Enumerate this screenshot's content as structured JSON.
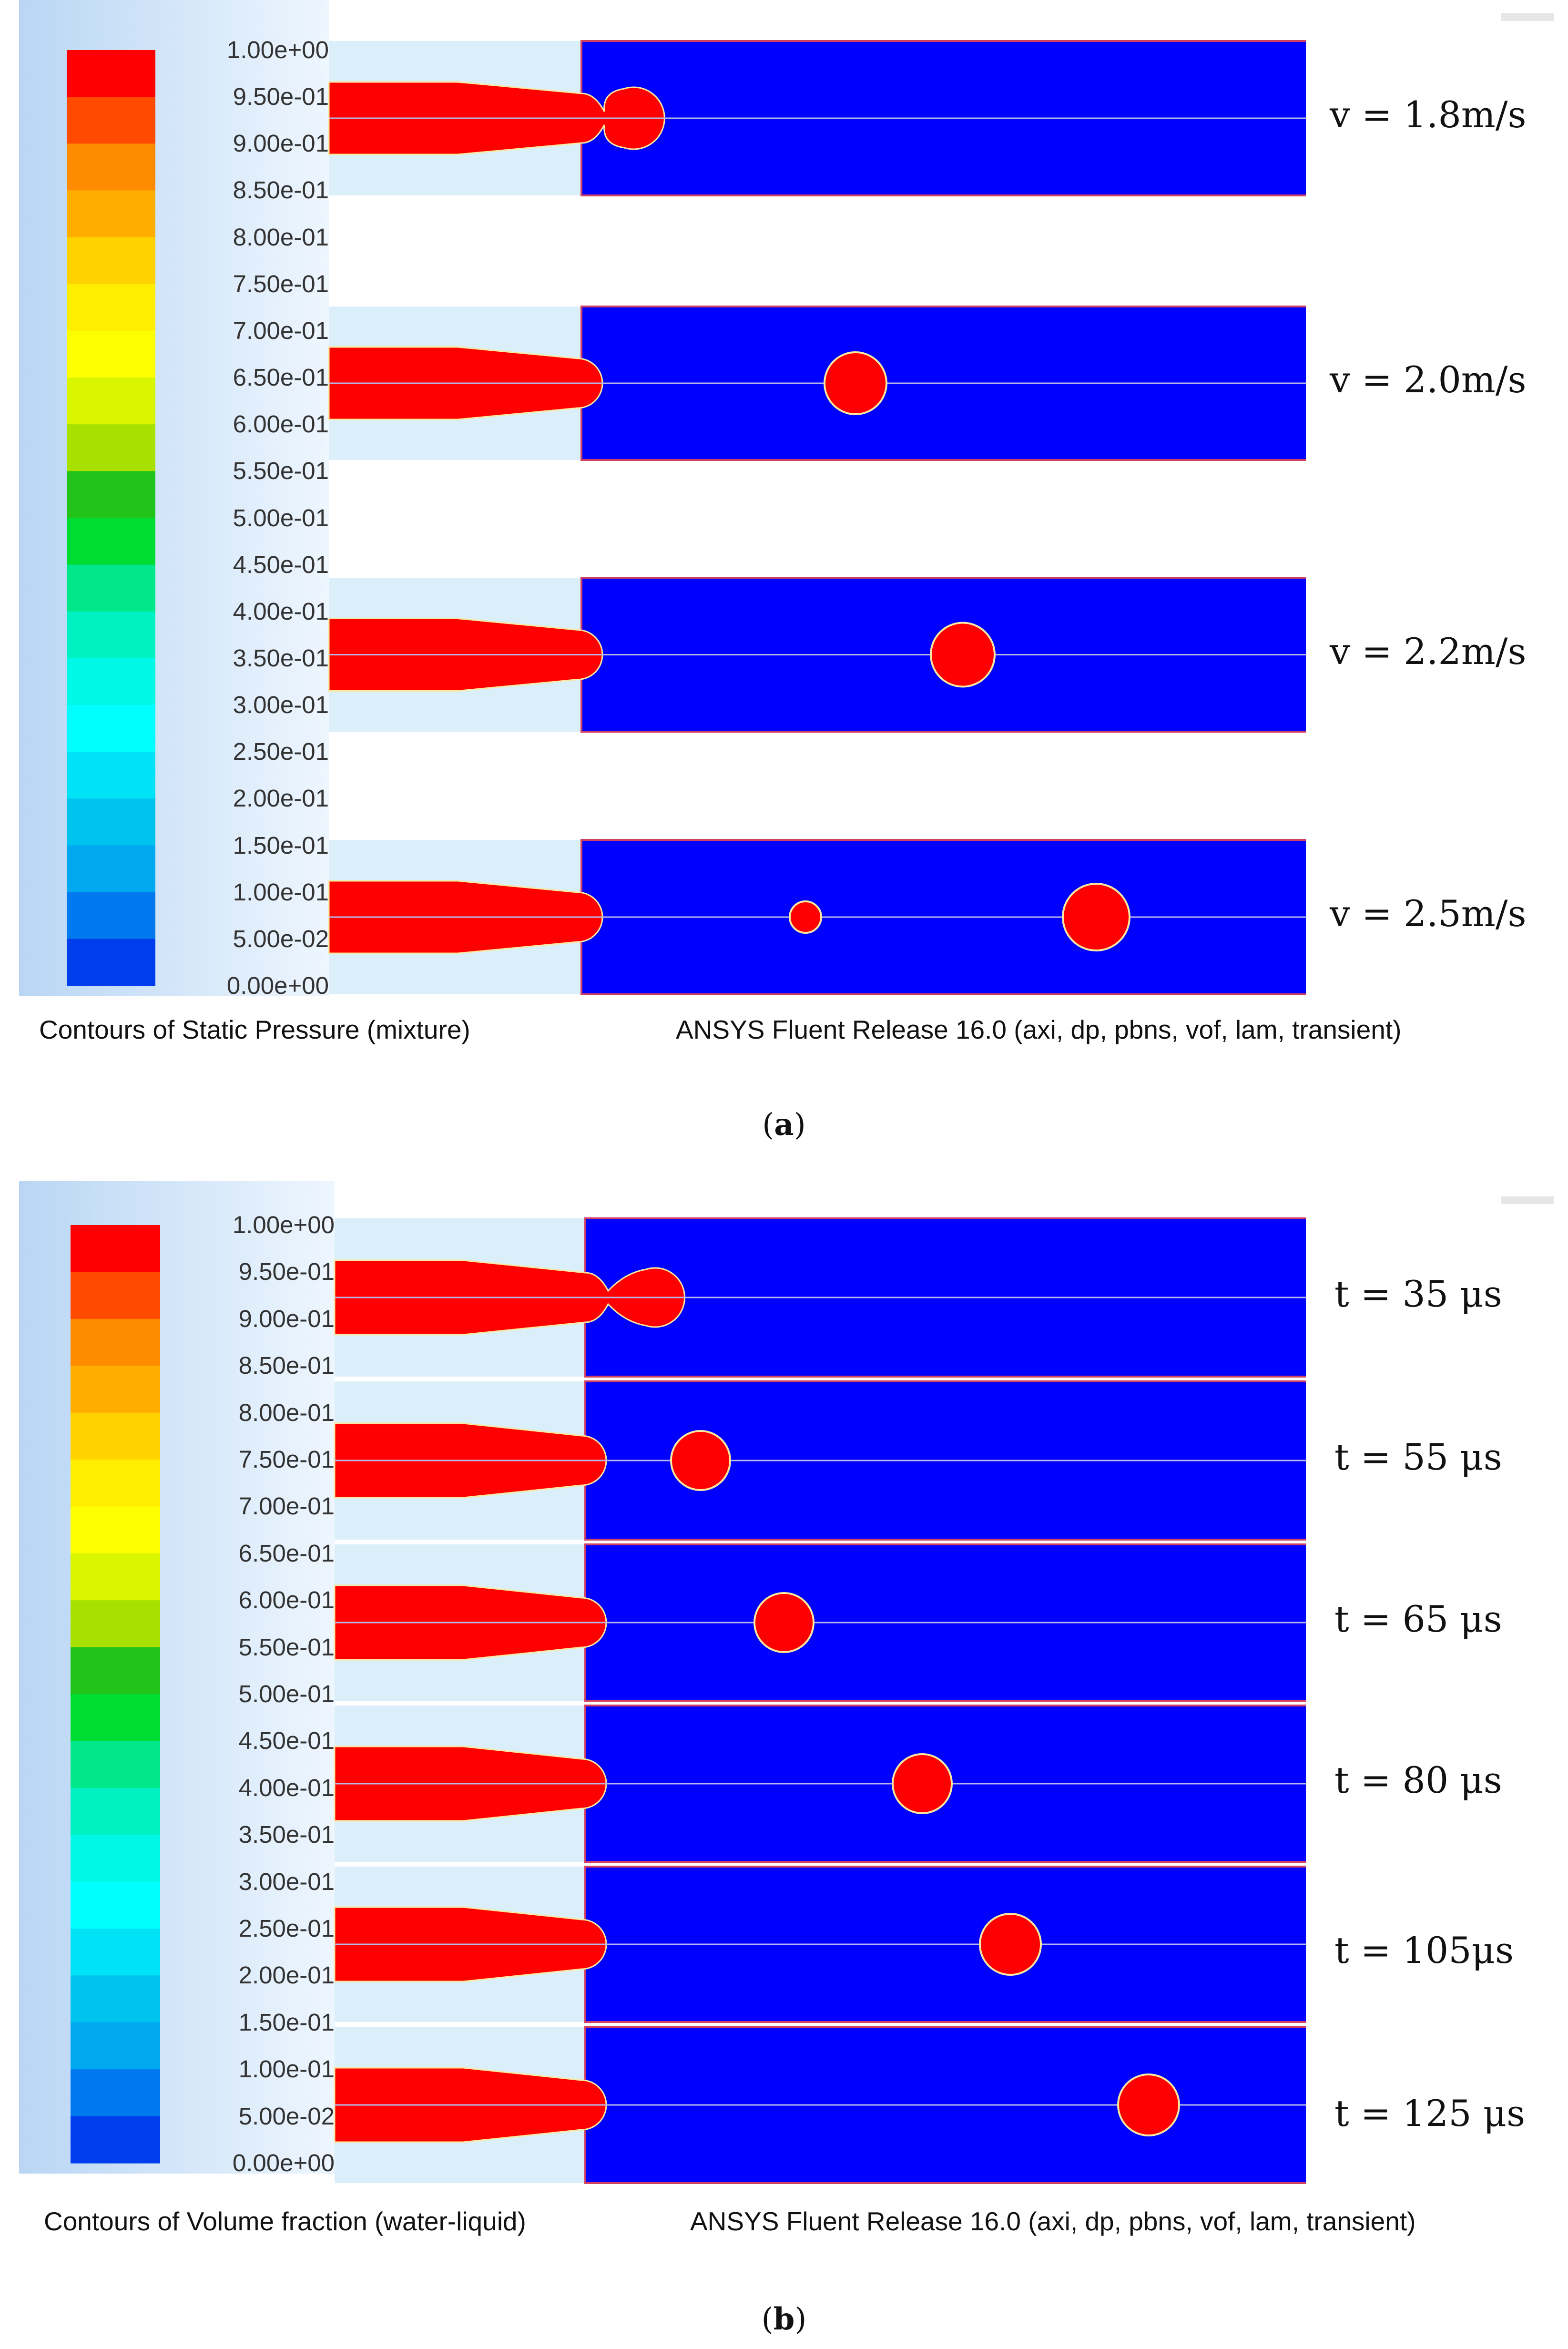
{
  "colorbar": {
    "labels": [
      "1.00e+00",
      "9.50e-01",
      "9.00e-01",
      "8.50e-01",
      "8.00e-01",
      "7.50e-01",
      "7.00e-01",
      "6.50e-01",
      "6.00e-01",
      "5.50e-01",
      "5.00e-01",
      "4.50e-01",
      "4.00e-01",
      "3.50e-01",
      "3.00e-01",
      "2.50e-01",
      "2.00e-01",
      "1.50e-01",
      "1.00e-01",
      "5.00e-02",
      "0.00e+00"
    ],
    "colors_top_to_bottom": [
      "#ff0000",
      "#ff4a00",
      "#ff8c00",
      "#ffae00",
      "#ffd200",
      "#ffee00",
      "#fdff00",
      "#daf500",
      "#a8e000",
      "#22c41c",
      "#00dd32",
      "#00e88a",
      "#00f2c2",
      "#00f8e6",
      "#00ffff",
      "#00e2f6",
      "#00c2ee",
      "#00a8f0",
      "#0078ee",
      "#003dec"
    ]
  },
  "colors": {
    "liquid": "#ff0000",
    "gas": "#0000ff",
    "nozzle_background": "#dbeffb",
    "interface": "#f8e8a0",
    "axis_line": "#b8b8e8"
  },
  "panel_a": {
    "sublabel_letter": "a",
    "caption_left": "Contours of Static Pressure (mixture)",
    "caption_right": "ANSYS Fluent Release 16.0 (axi, dp, pbns, vof, lam, transient)",
    "rows": [
      {
        "label": "v = 1.8m/s",
        "state": "necking"
      },
      {
        "label": "v = 2.0m/s",
        "state": "detached",
        "droplets": 1
      },
      {
        "label": "v = 2.2m/s",
        "state": "detached",
        "droplets": 1
      },
      {
        "label": "v = 2.5m/s",
        "state": "detached",
        "droplets": 2
      }
    ]
  },
  "panel_b": {
    "sublabel_letter": "b",
    "caption_left": "Contours of Volume fraction (water-liquid)",
    "caption_right": "ANSYS Fluent Release 16.0 (axi, dp, pbns, vof, lam, transient)",
    "rows": [
      {
        "label": "t = 35 μs",
        "state": "necking"
      },
      {
        "label": "t = 55 μs",
        "state": "detached",
        "droplets": 1
      },
      {
        "label": "t = 65 μs",
        "state": "detached",
        "droplets": 1
      },
      {
        "label": "t = 80 μs",
        "state": "detached",
        "droplets": 1
      },
      {
        "label": "t = 105μs",
        "state": "detached",
        "droplets": 1
      },
      {
        "label": "t = 125 μs",
        "state": "detached",
        "droplets": 1
      }
    ]
  }
}
